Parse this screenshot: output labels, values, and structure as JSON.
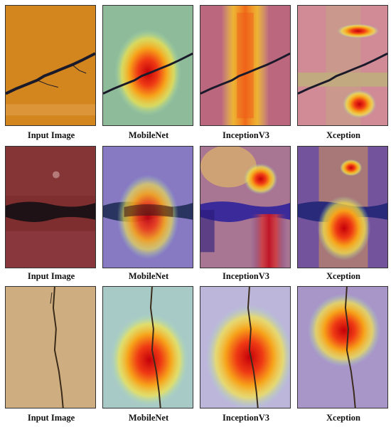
{
  "figure": {
    "rows": [
      {
        "captions": [
          "Input Image",
          "MobileNet",
          "InceptionV3",
          "Xception"
        ]
      },
      {
        "captions": [
          "Input Image",
          "MobileNet",
          "InceptionV3",
          "Xception"
        ]
      },
      {
        "captions": [
          "Input Image",
          "MobileNet",
          "InceptionV3",
          "Xception"
        ]
      }
    ],
    "colors": {
      "row1_surface": "#d4861e",
      "row2_surface": "#7e2e2e",
      "row3_surface": "#c8a67a",
      "heat_hot": "#d81e10",
      "heat_warm": "#f4c21a",
      "heat_cool": "#3a3db0"
    }
  }
}
